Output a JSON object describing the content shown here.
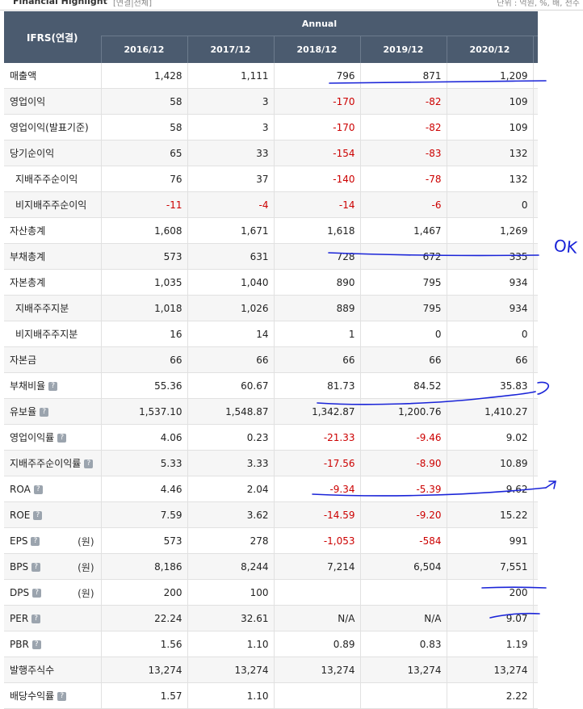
{
  "top": {
    "title": "Financial Highlight",
    "tabs": "[연결|전체]",
    "right": "단위 : 억원, %, 배, 천주"
  },
  "header": {
    "ifrs": "IFRS(연결)",
    "annual": "Annual",
    "years": [
      "2016/12",
      "2017/12",
      "2018/12",
      "2019/12",
      "2020/12"
    ]
  },
  "rows": [
    {
      "label": "매출액",
      "sub": false,
      "help": false,
      "unit": "",
      "values": [
        "1,428",
        "1,111",
        "796",
        "871",
        "1,209"
      ]
    },
    {
      "label": "영업이익",
      "sub": false,
      "help": false,
      "unit": "",
      "values": [
        "58",
        "3",
        "-170",
        "-82",
        "109"
      ]
    },
    {
      "label": "영업이익(발표기준)",
      "sub": false,
      "help": false,
      "unit": "",
      "values": [
        "58",
        "3",
        "-170",
        "-82",
        "109"
      ]
    },
    {
      "label": "당기순이익",
      "sub": false,
      "help": false,
      "unit": "",
      "values": [
        "65",
        "33",
        "-154",
        "-83",
        "132"
      ]
    },
    {
      "label": "지배주주순이익",
      "sub": true,
      "help": false,
      "unit": "",
      "values": [
        "76",
        "37",
        "-140",
        "-78",
        "132"
      ]
    },
    {
      "label": "비지배주주순이익",
      "sub": true,
      "help": false,
      "unit": "",
      "values": [
        "-11",
        "-4",
        "-14",
        "-6",
        "0"
      ]
    },
    {
      "label": "자산총계",
      "sub": false,
      "help": false,
      "unit": "",
      "values": [
        "1,608",
        "1,671",
        "1,618",
        "1,467",
        "1,269"
      ]
    },
    {
      "label": "부채총계",
      "sub": false,
      "help": false,
      "unit": "",
      "values": [
        "573",
        "631",
        "728",
        "672",
        "335"
      ]
    },
    {
      "label": "자본총계",
      "sub": false,
      "help": false,
      "unit": "",
      "values": [
        "1,035",
        "1,040",
        "890",
        "795",
        "934"
      ]
    },
    {
      "label": "지배주주지분",
      "sub": true,
      "help": false,
      "unit": "",
      "values": [
        "1,018",
        "1,026",
        "889",
        "795",
        "934"
      ]
    },
    {
      "label": "비지배주주지분",
      "sub": true,
      "help": false,
      "unit": "",
      "values": [
        "16",
        "14",
        "1",
        "0",
        "0"
      ]
    },
    {
      "label": "자본금",
      "sub": false,
      "help": false,
      "unit": "",
      "values": [
        "66",
        "66",
        "66",
        "66",
        "66"
      ]
    },
    {
      "label": "부채비율",
      "sub": false,
      "help": true,
      "unit": "",
      "values": [
        "55.36",
        "60.67",
        "81.73",
        "84.52",
        "35.83"
      ]
    },
    {
      "label": "유보율",
      "sub": false,
      "help": true,
      "unit": "",
      "values": [
        "1,537.10",
        "1,548.87",
        "1,342.87",
        "1,200.76",
        "1,410.27"
      ]
    },
    {
      "label": "영업이익률",
      "sub": false,
      "help": true,
      "unit": "",
      "values": [
        "4.06",
        "0.23",
        "-21.33",
        "-9.46",
        "9.02"
      ]
    },
    {
      "label": "지배주주순이익률",
      "sub": false,
      "help": true,
      "unit": "",
      "values": [
        "5.33",
        "3.33",
        "-17.56",
        "-8.90",
        "10.89"
      ]
    },
    {
      "label": "ROA",
      "sub": false,
      "help": true,
      "unit": "",
      "values": [
        "4.46",
        "2.04",
        "-9.34",
        "-5.39",
        "9.62"
      ]
    },
    {
      "label": "ROE",
      "sub": false,
      "help": true,
      "unit": "",
      "values": [
        "7.59",
        "3.62",
        "-14.59",
        "-9.20",
        "15.22"
      ]
    },
    {
      "label": "EPS",
      "sub": false,
      "help": true,
      "unit": "(원)",
      "values": [
        "573",
        "278",
        "-1,053",
        "-584",
        "991"
      ]
    },
    {
      "label": "BPS",
      "sub": false,
      "help": true,
      "unit": "(원)",
      "values": [
        "8,186",
        "8,244",
        "7,214",
        "6,504",
        "7,551"
      ]
    },
    {
      "label": "DPS",
      "sub": false,
      "help": true,
      "unit": "(원)",
      "values": [
        "200",
        "100",
        "",
        "",
        "200"
      ]
    },
    {
      "label": "PER",
      "sub": false,
      "help": true,
      "unit": "",
      "values": [
        "22.24",
        "32.61",
        "N/A",
        "N/A",
        "9.07"
      ]
    },
    {
      "label": "PBR",
      "sub": false,
      "help": true,
      "unit": "",
      "values": [
        "1.56",
        "1.10",
        "0.89",
        "0.83",
        "1.19"
      ]
    },
    {
      "label": "발행주식수",
      "sub": false,
      "help": false,
      "unit": "",
      "values": [
        "13,274",
        "13,274",
        "13,274",
        "13,274",
        "13,274"
      ]
    },
    {
      "label": "배당수익률",
      "sub": false,
      "help": true,
      "unit": "",
      "values": [
        "1.57",
        "1.10",
        "",
        "",
        "2.22"
      ]
    }
  ],
  "annotations": {
    "ok_text": "OK"
  },
  "colors": {
    "header_bg": "#4b5b6f",
    "negative": "#cc0000",
    "ink": "#1a24d8",
    "row_alt": "#f6f6f6"
  }
}
